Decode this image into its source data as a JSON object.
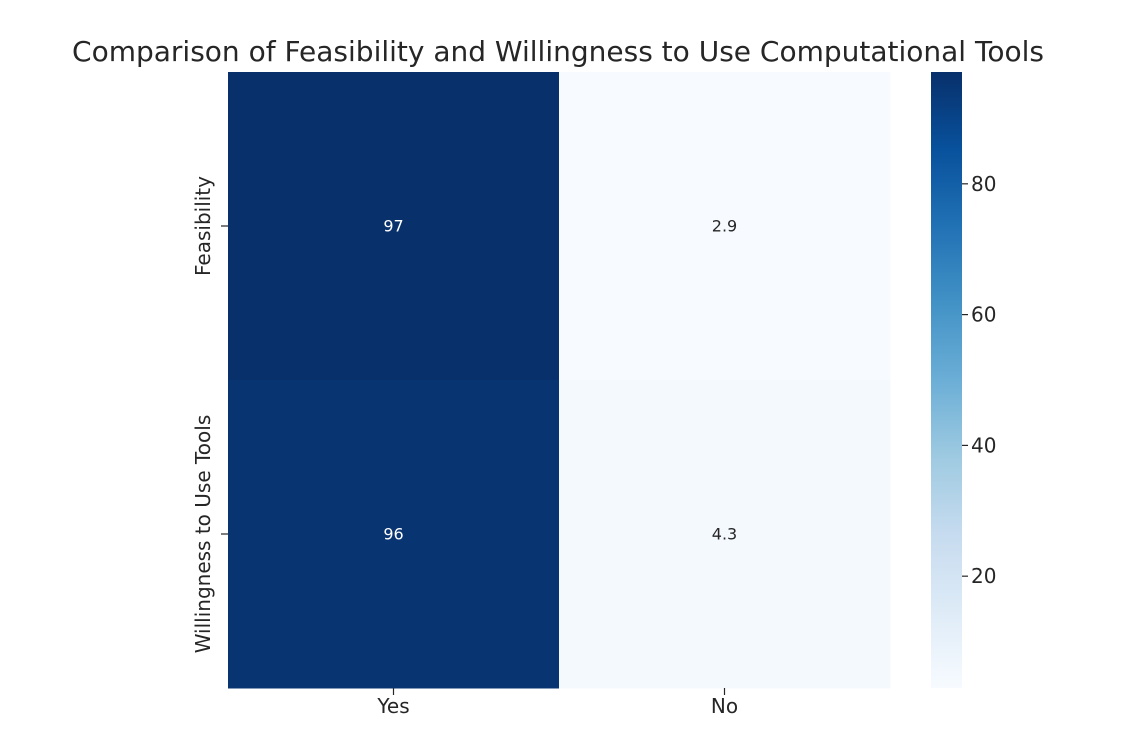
{
  "chart_data": {
    "type": "heatmap",
    "title": "Comparison of Feasibility and Willingness to Use Computational Tools",
    "x_categories": [
      "Yes",
      "No"
    ],
    "y_categories": [
      "Feasibility",
      "Willingness to Use Tools"
    ],
    "values": [
      [
        97.1,
        2.9
      ],
      [
        95.7,
        4.3
      ]
    ],
    "cell_labels": [
      [
        "97",
        "2.9"
      ],
      [
        "96",
        "4.3"
      ]
    ],
    "colormap": "Blues",
    "colorbar": {
      "range": [
        2.9,
        97.1
      ],
      "ticks": [
        20,
        40,
        60,
        80
      ],
      "tick_labels": [
        "20",
        "40",
        "60",
        "80"
      ]
    }
  }
}
